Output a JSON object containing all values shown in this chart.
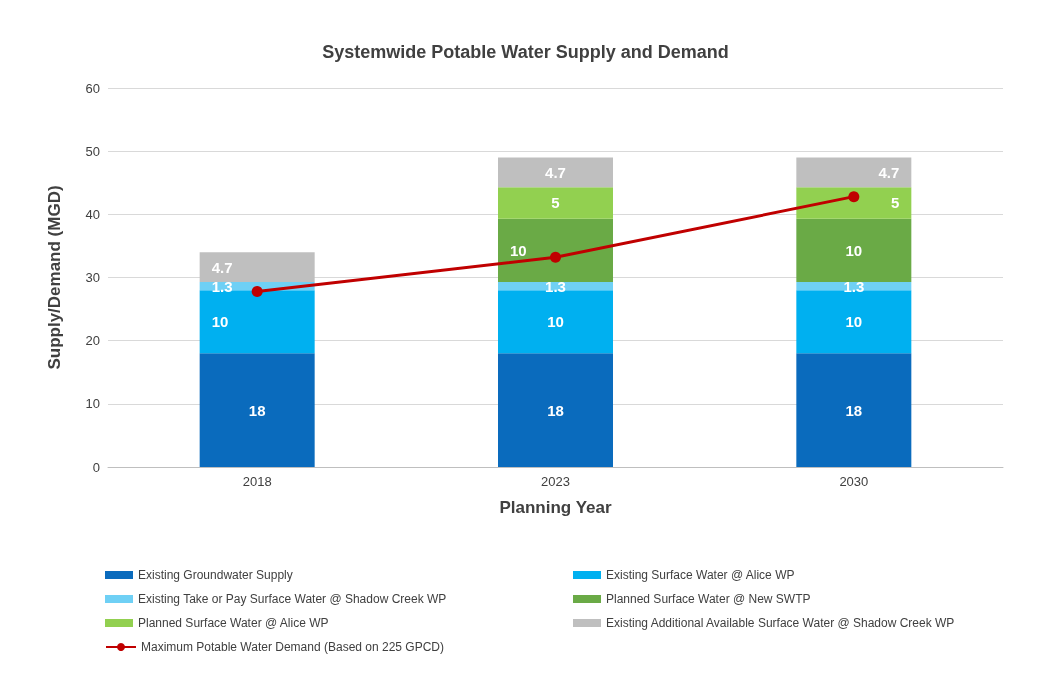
{
  "chart_data": {
    "type": "bar",
    "stacked": true,
    "title": "Systemwide Potable Water Supply and Demand",
    "xlabel": "Planning Year",
    "ylabel": "Supply/Demand (MGD)",
    "categories": [
      "2018",
      "2023",
      "2030"
    ],
    "series": [
      {
        "name": "Existing Groundwater Supply",
        "color": "#0a6bbd",
        "values": [
          18,
          18,
          18
        ],
        "value_labels": [
          "18",
          "18",
          "18"
        ]
      },
      {
        "name": "Existing Surface Water @ Alice WP",
        "color": "#00b0f0",
        "values": [
          10,
          10,
          10
        ],
        "value_labels": [
          "10",
          "10",
          "10"
        ]
      },
      {
        "name": "Existing Take or Pay Surface Water @ Shadow Creek WP",
        "color": "#6fd0f5",
        "values": [
          1.3,
          1.3,
          1.3
        ],
        "value_labels": [
          "1.3",
          "1.3",
          "1.3"
        ]
      },
      {
        "name": "Planned Surface Water @ New SWTP",
        "color": "#6aaa46",
        "values": [
          null,
          10,
          10
        ],
        "value_labels": [
          null,
          "10",
          "10"
        ]
      },
      {
        "name": "Planned Surface Water @ Alice WP",
        "color": "#92d050",
        "values": [
          null,
          5,
          5
        ],
        "value_labels": [
          null,
          "5",
          "5"
        ]
      },
      {
        "name": "Existing Additional Available Surface Water @ Shadow Creek WP",
        "color": "#bfbfbf",
        "values": [
          4.7,
          4.7,
          4.7
        ],
        "value_labels": [
          "4.7",
          "4.7",
          "4.7"
        ]
      },
      {
        "name": "Maximum Potable Water Demand (Based on 225 GPCD)",
        "type": "line",
        "color": "#c00000",
        "marker": "circle",
        "values": [
          27.8,
          33.2,
          42.8
        ]
      }
    ],
    "ylim": [
      0,
      60
    ],
    "yticks": [
      0,
      10,
      20,
      30,
      40,
      50,
      60
    ],
    "grid": "y",
    "legend": "bottom"
  }
}
